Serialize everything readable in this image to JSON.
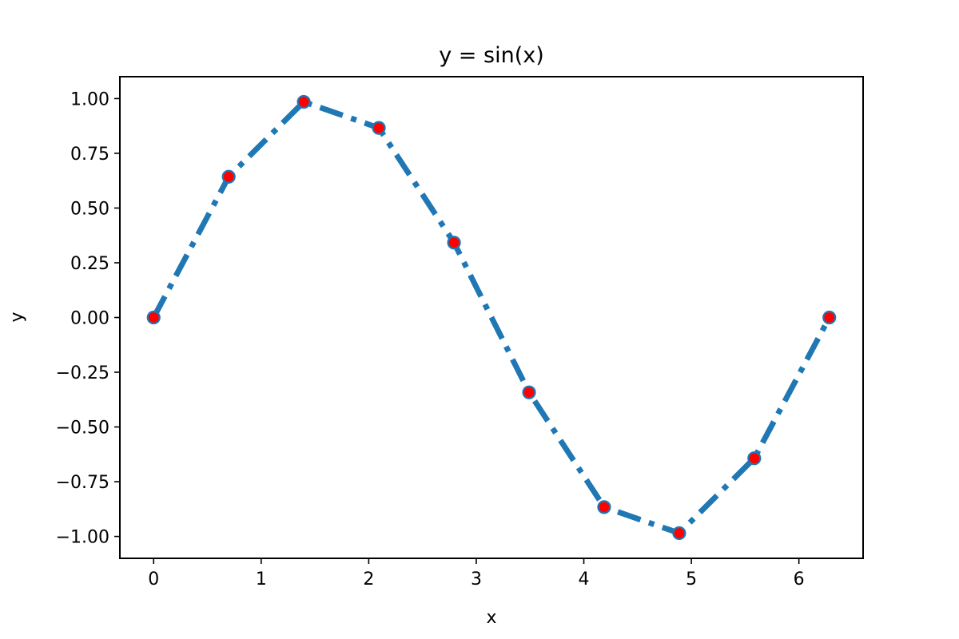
{
  "chart_data": {
    "type": "line",
    "title": "y = sin(x)",
    "xlabel": "x",
    "ylabel": "y",
    "xlim": [
      -0.314,
      6.597
    ],
    "ylim": [
      -1.1,
      1.1
    ],
    "x_ticks": [
      0,
      1,
      2,
      3,
      4,
      5,
      6
    ],
    "x_tick_labels": [
      "0",
      "1",
      "2",
      "3",
      "4",
      "5",
      "6"
    ],
    "y_ticks": [
      1.0,
      0.75,
      0.5,
      0.25,
      0.0,
      -0.25,
      -0.5,
      -0.75,
      -1.0
    ],
    "y_tick_labels": [
      "1.00",
      "0.75",
      "0.50",
      "0.25",
      "0.00",
      "−0.25",
      "−0.50",
      "−0.75",
      "−1.00"
    ],
    "grid": false,
    "line_style": "dash-dot",
    "series": [
      {
        "x": [
          0.0,
          0.698,
          1.396,
          2.094,
          2.793,
          3.491,
          4.189,
          4.887,
          5.585,
          6.283
        ],
        "y": [
          0.0,
          0.643,
          0.985,
          0.866,
          0.342,
          -0.342,
          -0.866,
          -0.985,
          -0.643,
          0.0
        ],
        "line_color": "#1f77b4",
        "marker_face_color": "#ff0000",
        "marker_edge_color": "#1f77b4"
      }
    ]
  }
}
